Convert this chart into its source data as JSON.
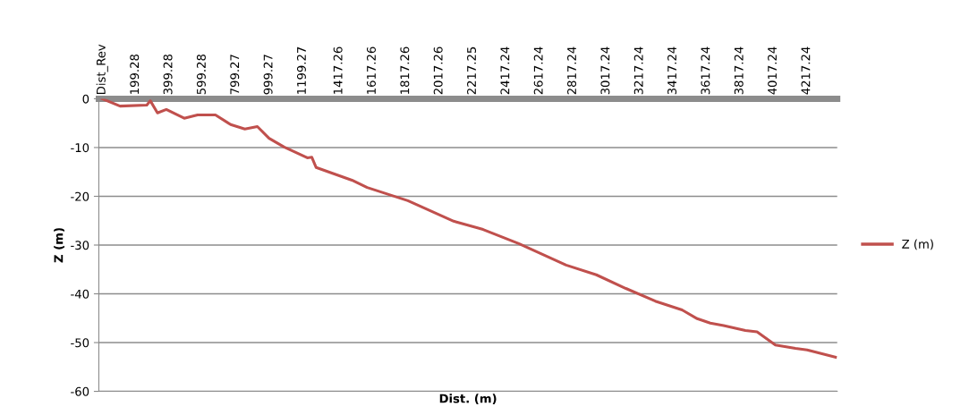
{
  "chart_data": {
    "type": "line",
    "xlabel": "Dist. (m)",
    "ylabel": "Z (m)",
    "x": [
      0,
      107,
      267,
      288,
      331,
      384,
      491,
      571,
      678,
      769,
      854,
      929,
      999,
      1089,
      1228,
      1255,
      1281,
      1356,
      1495,
      1586,
      1830,
      2104,
      2280,
      2494,
      2777,
      2958,
      3135,
      3311,
      3471,
      3562,
      3640,
      3720,
      3850,
      3920,
      4030,
      4150,
      4220,
      4390
    ],
    "series": [
      {
        "name": "Z (m)",
        "color": "#c0504d",
        "values": [
          0,
          -1.5,
          -1.3,
          -0.4,
          -2.9,
          -2.2,
          -4.0,
          -3.3,
          -3.3,
          -5.3,
          -6.2,
          -5.7,
          -8.1,
          -9.9,
          -12.1,
          -12.0,
          -14.1,
          -15.0,
          -16.7,
          -18.2,
          -20.9,
          -25.1,
          -26.8,
          -29.7,
          -34.1,
          -36.1,
          -38.9,
          -41.5,
          -43.3,
          -45.1,
          -46.0,
          -46.5,
          -47.5,
          -47.8,
          -50.5,
          -51.2,
          -51.5,
          -53.0
        ]
      }
    ],
    "xlim": [
      -20,
      4400
    ],
    "xticks": [
      {
        "value": 0,
        "label": "Dist_Rev"
      },
      199.28,
      399.28,
      599.28,
      799.27,
      999.27,
      1199.27,
      1417.26,
      1617.26,
      1817.26,
      2017.26,
      2217.25,
      2417.24,
      2617.24,
      2817.24,
      3017.24,
      3217.24,
      3417.24,
      3617.24,
      3817.24,
      4017.24,
      4217.24
    ],
    "ylim": [
      -60,
      0
    ],
    "yticks": [
      -60,
      -50,
      -40,
      -30,
      -20,
      -10,
      0
    ],
    "grid": "y",
    "legend": "right",
    "line_style": "solid",
    "marker": "none"
  }
}
